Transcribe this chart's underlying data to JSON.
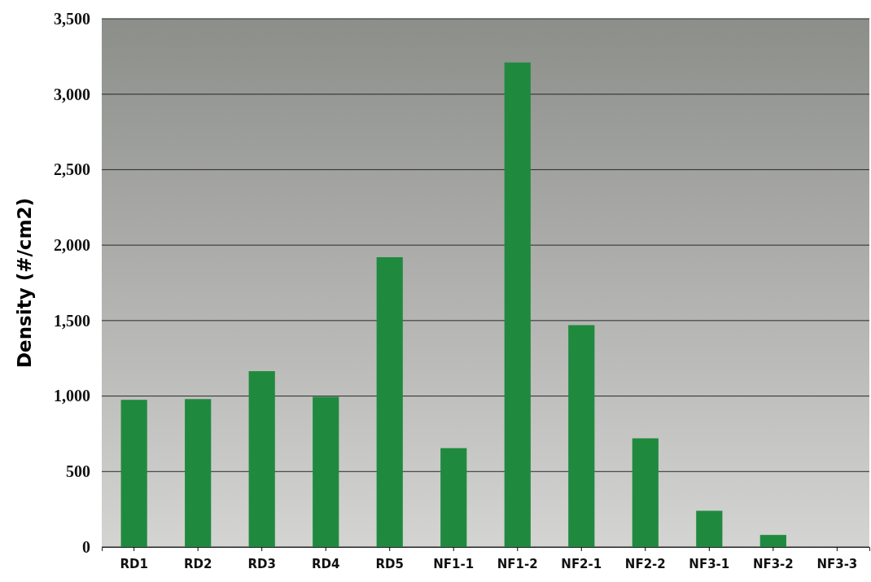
{
  "chart_data": {
    "type": "bar",
    "ylabel": "Density (#/cm2)",
    "categories": [
      "RD1",
      "RD2",
      "RD3",
      "RD4",
      "RD5",
      "NF1-1",
      "NF1-2",
      "NF2-1",
      "NF2-2",
      "NF3-1",
      "NF3-2",
      "NF3-3"
    ],
    "values": [
      975,
      980,
      1165,
      995,
      1920,
      655,
      3210,
      1470,
      720,
      240,
      80,
      0
    ],
    "color": "#1f8a3e",
    "ylim": [
      0,
      3500
    ],
    "yticks": [
      {
        "value": 0,
        "label": "0"
      },
      {
        "value": 500,
        "label": "500"
      },
      {
        "value": 1000,
        "label": "1,000"
      },
      {
        "value": 1500,
        "label": "1,500"
      },
      {
        "value": 2000,
        "label": "2,000"
      },
      {
        "value": 2500,
        "label": "2,500"
      },
      {
        "value": 3000,
        "label": "3,000"
      },
      {
        "value": 3500,
        "label": "3,500"
      }
    ],
    "grid": "y"
  }
}
